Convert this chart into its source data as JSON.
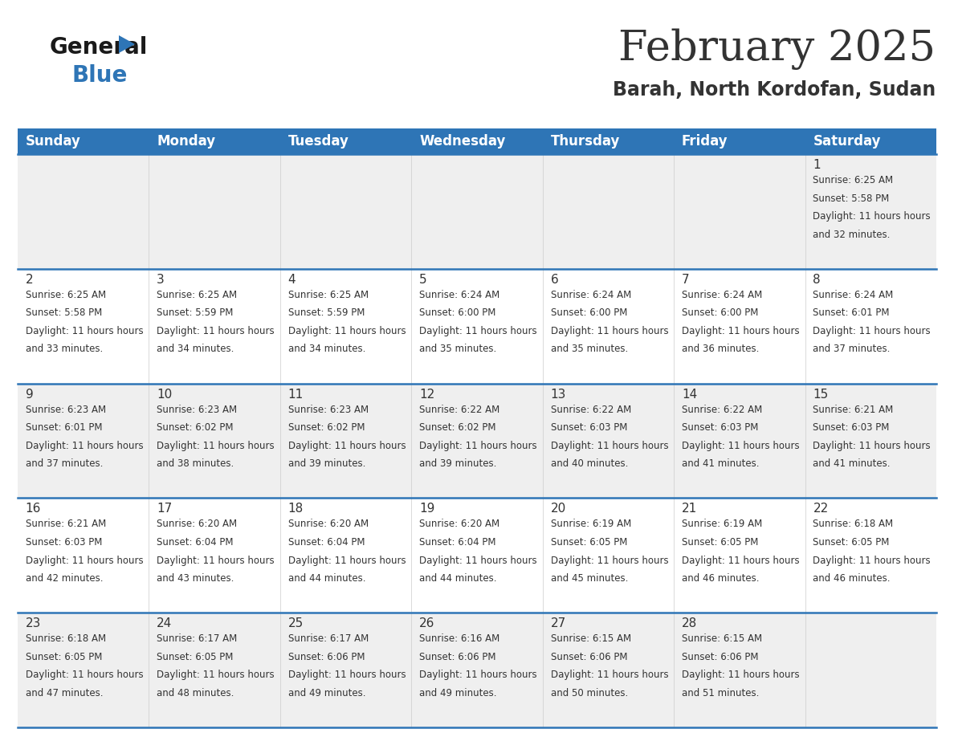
{
  "title": "February 2025",
  "subtitle": "Barah, North Kordofan, Sudan",
  "header_bg": "#2E75B6",
  "header_text_color": "#FFFFFF",
  "days_of_week": [
    "Sunday",
    "Monday",
    "Tuesday",
    "Wednesday",
    "Thursday",
    "Friday",
    "Saturday"
  ],
  "bg_color": "#FFFFFF",
  "cell_bg_light": "#EFEFEF",
  "cell_bg_white": "#FFFFFF",
  "row_line_color": "#2E75B6",
  "text_color": "#333333",
  "calendar": [
    [
      {
        "day": null,
        "sunrise": null,
        "sunset": null,
        "daylight": null
      },
      {
        "day": null,
        "sunrise": null,
        "sunset": null,
        "daylight": null
      },
      {
        "day": null,
        "sunrise": null,
        "sunset": null,
        "daylight": null
      },
      {
        "day": null,
        "sunrise": null,
        "sunset": null,
        "daylight": null
      },
      {
        "day": null,
        "sunrise": null,
        "sunset": null,
        "daylight": null
      },
      {
        "day": null,
        "sunrise": null,
        "sunset": null,
        "daylight": null
      },
      {
        "day": 1,
        "sunrise": "6:25 AM",
        "sunset": "5:58 PM",
        "daylight": "11 hours and 32 minutes"
      }
    ],
    [
      {
        "day": 2,
        "sunrise": "6:25 AM",
        "sunset": "5:58 PM",
        "daylight": "11 hours and 33 minutes"
      },
      {
        "day": 3,
        "sunrise": "6:25 AM",
        "sunset": "5:59 PM",
        "daylight": "11 hours and 34 minutes"
      },
      {
        "day": 4,
        "sunrise": "6:25 AM",
        "sunset": "5:59 PM",
        "daylight": "11 hours and 34 minutes"
      },
      {
        "day": 5,
        "sunrise": "6:24 AM",
        "sunset": "6:00 PM",
        "daylight": "11 hours and 35 minutes"
      },
      {
        "day": 6,
        "sunrise": "6:24 AM",
        "sunset": "6:00 PM",
        "daylight": "11 hours and 35 minutes"
      },
      {
        "day": 7,
        "sunrise": "6:24 AM",
        "sunset": "6:00 PM",
        "daylight": "11 hours and 36 minutes"
      },
      {
        "day": 8,
        "sunrise": "6:24 AM",
        "sunset": "6:01 PM",
        "daylight": "11 hours and 37 minutes"
      }
    ],
    [
      {
        "day": 9,
        "sunrise": "6:23 AM",
        "sunset": "6:01 PM",
        "daylight": "11 hours and 37 minutes"
      },
      {
        "day": 10,
        "sunrise": "6:23 AM",
        "sunset": "6:02 PM",
        "daylight": "11 hours and 38 minutes"
      },
      {
        "day": 11,
        "sunrise": "6:23 AM",
        "sunset": "6:02 PM",
        "daylight": "11 hours and 39 minutes"
      },
      {
        "day": 12,
        "sunrise": "6:22 AM",
        "sunset": "6:02 PM",
        "daylight": "11 hours and 39 minutes"
      },
      {
        "day": 13,
        "sunrise": "6:22 AM",
        "sunset": "6:03 PM",
        "daylight": "11 hours and 40 minutes"
      },
      {
        "day": 14,
        "sunrise": "6:22 AM",
        "sunset": "6:03 PM",
        "daylight": "11 hours and 41 minutes"
      },
      {
        "day": 15,
        "sunrise": "6:21 AM",
        "sunset": "6:03 PM",
        "daylight": "11 hours and 41 minutes"
      }
    ],
    [
      {
        "day": 16,
        "sunrise": "6:21 AM",
        "sunset": "6:03 PM",
        "daylight": "11 hours and 42 minutes"
      },
      {
        "day": 17,
        "sunrise": "6:20 AM",
        "sunset": "6:04 PM",
        "daylight": "11 hours and 43 minutes"
      },
      {
        "day": 18,
        "sunrise": "6:20 AM",
        "sunset": "6:04 PM",
        "daylight": "11 hours and 44 minutes"
      },
      {
        "day": 19,
        "sunrise": "6:20 AM",
        "sunset": "6:04 PM",
        "daylight": "11 hours and 44 minutes"
      },
      {
        "day": 20,
        "sunrise": "6:19 AM",
        "sunset": "6:05 PM",
        "daylight": "11 hours and 45 minutes"
      },
      {
        "day": 21,
        "sunrise": "6:19 AM",
        "sunset": "6:05 PM",
        "daylight": "11 hours and 46 minutes"
      },
      {
        "day": 22,
        "sunrise": "6:18 AM",
        "sunset": "6:05 PM",
        "daylight": "11 hours and 46 minutes"
      }
    ],
    [
      {
        "day": 23,
        "sunrise": "6:18 AM",
        "sunset": "6:05 PM",
        "daylight": "11 hours and 47 minutes"
      },
      {
        "day": 24,
        "sunrise": "6:17 AM",
        "sunset": "6:05 PM",
        "daylight": "11 hours and 48 minutes"
      },
      {
        "day": 25,
        "sunrise": "6:17 AM",
        "sunset": "6:06 PM",
        "daylight": "11 hours and 49 minutes"
      },
      {
        "day": 26,
        "sunrise": "6:16 AM",
        "sunset": "6:06 PM",
        "daylight": "11 hours and 49 minutes"
      },
      {
        "day": 27,
        "sunrise": "6:15 AM",
        "sunset": "6:06 PM",
        "daylight": "11 hours and 50 minutes"
      },
      {
        "day": 28,
        "sunrise": "6:15 AM",
        "sunset": "6:06 PM",
        "daylight": "11 hours and 51 minutes"
      },
      {
        "day": null,
        "sunrise": null,
        "sunset": null,
        "daylight": null
      }
    ]
  ],
  "logo_text_general": "General",
  "logo_text_blue": "Blue",
  "logo_color_general": "#1a1a1a",
  "logo_color_blue": "#2E75B6",
  "logo_triangle_color": "#2E75B6",
  "title_fontsize": 38,
  "subtitle_fontsize": 17,
  "header_fontsize": 12,
  "day_num_fontsize": 11,
  "cell_text_fontsize": 8.5
}
